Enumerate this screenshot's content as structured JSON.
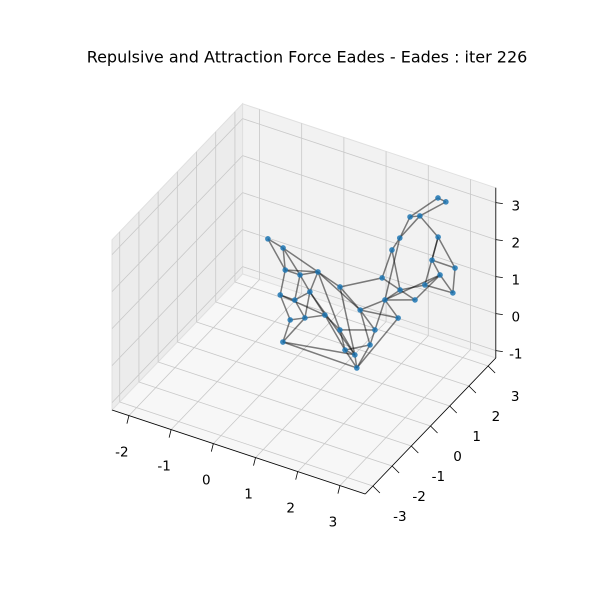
{
  "chart_data": {
    "type": "graph3d",
    "title": "Repulsive and Attraction Force Eades - Eades : iter 226",
    "xlim": [
      -2.4,
      3.6
    ],
    "ylim": [
      -3.4,
      3.4
    ],
    "zlim": [
      -1.2,
      3.4
    ],
    "xticks": [
      -2,
      -1,
      0,
      1,
      2,
      3
    ],
    "yticks": [
      -3,
      -2,
      -1,
      0,
      1,
      2,
      3
    ],
    "zticks": [
      -1,
      0,
      1,
      2,
      3
    ],
    "grid": true,
    "node_color": "#1f77b4",
    "edge_color": "#000000",
    "nodes": {
      "x": [
        -0.19,
        -0.59,
        -0.17,
        0.18,
        0.45,
        0.17,
        0.52,
        0.65,
        0.78,
        1.01,
        1.03,
        1.32,
        1.08,
        1.78,
        2.04,
        1.88,
        1.52,
        1.71,
        0.34,
        1.1,
        2.01,
        2.11,
        2.55,
        2.47,
        2.57,
        3.11,
        2.56,
        1.58,
        2.68,
        3.23,
        2.52,
        2.23,
        2.05,
        2.21,
        2.48,
        2.69,
        2.04
      ],
      "y": [
        -0.14,
        1.53,
        0.72,
        0.72,
        1.06,
        -0.29,
        -0.3,
        0.2,
        -1.11,
        -0.85,
        -2.04,
        -0.49,
        0.82,
        0.06,
        -0.41,
        0.63,
        0.12,
        1.26,
        2.45,
        1.83,
        1.12,
        1.69,
        1.5,
        2.19,
        2.76,
        2.24,
        0.6,
        1.92,
        2.1,
        2.09,
        2.77,
        1.41,
        2.34,
        2.5,
        2.85,
        2.8,
        1.42
      ],
      "z": [
        2.5,
        1.2,
        1.2,
        1.2,
        1.2,
        1.2,
        1.2,
        1.2,
        1.2,
        1.2,
        1.2,
        1.2,
        0,
        0,
        0,
        0,
        0,
        0,
        0,
        0,
        1,
        1,
        1,
        1,
        1,
        1,
        1,
        1,
        1.8,
        1.8,
        2,
        2.6,
        2.6,
        2.6,
        3,
        3,
        2.2
      ]
    },
    "edges": [
      [
        0,
        1
      ],
      [
        0,
        2
      ],
      [
        1,
        2
      ],
      [
        1,
        3
      ],
      [
        2,
        3
      ],
      [
        2,
        5
      ],
      [
        3,
        4
      ],
      [
        3,
        6
      ],
      [
        3,
        7
      ],
      [
        4,
        7
      ],
      [
        4,
        12
      ],
      [
        4,
        18
      ],
      [
        5,
        6
      ],
      [
        5,
        8
      ],
      [
        6,
        7
      ],
      [
        6,
        9
      ],
      [
        7,
        9
      ],
      [
        7,
        11
      ],
      [
        8,
        9
      ],
      [
        8,
        10
      ],
      [
        9,
        11
      ],
      [
        9,
        10
      ],
      [
        10,
        13
      ],
      [
        11,
        12
      ],
      [
        11,
        16
      ],
      [
        12,
        16
      ],
      [
        12,
        13
      ],
      [
        13,
        16
      ],
      [
        13,
        14
      ],
      [
        14,
        15
      ],
      [
        14,
        16
      ],
      [
        15,
        17
      ],
      [
        15,
        19
      ],
      [
        16,
        15
      ],
      [
        17,
        19
      ],
      [
        17,
        20
      ],
      [
        18,
        19
      ],
      [
        18,
        27
      ],
      [
        19,
        20
      ],
      [
        19,
        26
      ],
      [
        20,
        21
      ],
      [
        20,
        22
      ],
      [
        21,
        22
      ],
      [
        21,
        23
      ],
      [
        22,
        24
      ],
      [
        23,
        24
      ],
      [
        23,
        25
      ],
      [
        24,
        25
      ],
      [
        24,
        28
      ],
      [
        25,
        29
      ],
      [
        26,
        20
      ],
      [
        27,
        21
      ],
      [
        28,
        29
      ],
      [
        28,
        30
      ],
      [
        29,
        30
      ],
      [
        30,
        23
      ],
      [
        31,
        32
      ],
      [
        31,
        33
      ],
      [
        32,
        33
      ],
      [
        32,
        34
      ],
      [
        33,
        35
      ],
      [
        34,
        35
      ],
      [
        36,
        31
      ],
      [
        36,
        21
      ],
      [
        36,
        27
      ],
      [
        33,
        30
      ],
      [
        31,
        20
      ],
      [
        4,
        19
      ],
      [
        7,
        13
      ],
      [
        12,
        17
      ],
      [
        5,
        11
      ],
      [
        2,
        4
      ],
      [
        18,
        13
      ],
      [
        26,
        14
      ],
      [
        10,
        14
      ],
      [
        1,
        4
      ],
      [
        20,
        24
      ]
    ]
  }
}
